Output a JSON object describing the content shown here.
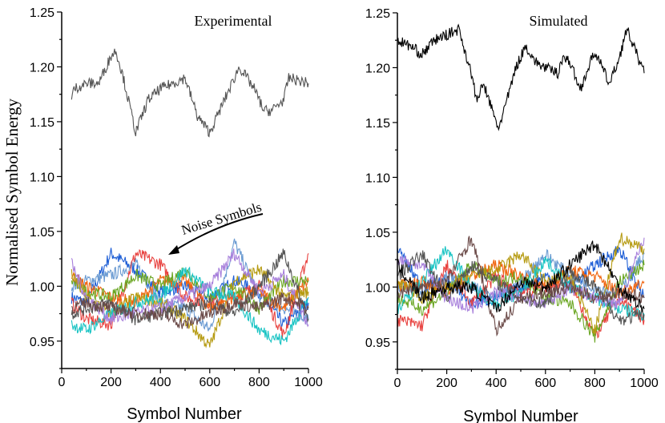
{
  "chart_data": [
    {
      "type": "line",
      "title": "Experimental",
      "xlabel": "Symbol Number",
      "ylabel": "Normalised Symbol Energy",
      "xlim": [
        0,
        1000
      ],
      "ylim": [
        0.925,
        1.25
      ],
      "xticks": [
        0,
        200,
        400,
        600,
        800,
        1000
      ],
      "yticks": [
        "0.95",
        "1.00",
        "1.05",
        "1.10",
        "1.15",
        "1.20",
        "1.25"
      ],
      "grid": false,
      "annotation": {
        "text": "Noise Symbols",
        "points_to": [
          430,
          1.027
        ]
      },
      "main_series": {
        "color": "#555555",
        "x": [
          40,
          50,
          100,
          150,
          200,
          220,
          250,
          280,
          300,
          350,
          400,
          450,
          500,
          550,
          600,
          650,
          700,
          720,
          780,
          820,
          850,
          900,
          920,
          1000
        ],
        "y": [
          1.17,
          1.18,
          1.185,
          1.185,
          1.21,
          1.215,
          1.19,
          1.16,
          1.14,
          1.17,
          1.18,
          1.185,
          1.19,
          1.155,
          1.14,
          1.165,
          1.19,
          1.2,
          1.18,
          1.16,
          1.16,
          1.17,
          1.19,
          1.185
        ]
      },
      "noise_x": [
        40,
        100,
        200,
        300,
        400,
        500,
        600,
        700,
        800,
        900,
        1000
      ],
      "noise_series": [
        {
          "color": "#1f5fd6",
          "y": [
            0.99,
            0.985,
            1.03,
            1.015,
            0.995,
            1.0,
            0.99,
            1.005,
            0.995,
            0.965,
            0.985
          ]
        },
        {
          "color": "#6b9bd2",
          "y": [
            1.0,
            1.005,
            1.01,
            1.02,
            0.985,
            0.98,
            0.96,
            1.04,
            0.99,
            0.98,
            0.97
          ]
        },
        {
          "color": "#e8423f",
          "y": [
            0.985,
            0.97,
            0.965,
            1.03,
            1.02,
            0.99,
            0.985,
            0.99,
            1.0,
            0.955,
            1.03
          ]
        },
        {
          "color": "#f0640f",
          "y": [
            1.01,
            1.0,
            0.99,
            0.985,
            1.005,
            1.005,
            0.98,
            0.99,
            0.995,
            0.98,
            1.005
          ]
        },
        {
          "color": "#6aa622",
          "y": [
            1.005,
            0.995,
            0.99,
            1.01,
            1.0,
            1.015,
            0.99,
            1.0,
            0.98,
            1.005,
            1.005
          ]
        },
        {
          "color": "#b59a10",
          "y": [
            1.01,
            0.99,
            0.975,
            0.99,
            0.985,
            0.97,
            0.945,
            1.005,
            1.015,
            0.99,
            0.995
          ]
        },
        {
          "color": "#17c3c3",
          "y": [
            0.965,
            0.96,
            0.975,
            0.985,
            0.99,
            1.015,
            0.995,
            0.99,
            0.96,
            0.95,
            0.99
          ]
        },
        {
          "color": "#a77fdb",
          "y": [
            1.02,
            0.99,
            0.97,
            0.975,
            0.98,
            0.99,
            1.0,
            1.03,
            0.995,
            1.01,
            0.965
          ]
        },
        {
          "color": "#555555",
          "y": [
            0.975,
            0.98,
            0.985,
            0.97,
            0.975,
            0.98,
            0.985,
            0.975,
            1.0,
            1.03,
            0.97
          ]
        },
        {
          "color": "#6b4a48",
          "y": [
            0.98,
            0.985,
            0.98,
            0.975,
            0.975,
            0.965,
            0.975,
            0.985,
            0.98,
            0.99,
            0.98
          ]
        }
      ]
    },
    {
      "type": "line",
      "title": "Simulated",
      "xlabel": "Symbol Number",
      "xlim": [
        0,
        1000
      ],
      "ylim": [
        0.925,
        1.25
      ],
      "xticks": [
        0,
        200,
        400,
        600,
        800,
        1000
      ],
      "yticks": [
        "0.95",
        "1.00",
        "1.05",
        "1.10",
        "1.15",
        "1.20",
        "1.25"
      ],
      "grid": false,
      "main_series": {
        "color": "#000000",
        "x": [
          0,
          50,
          100,
          150,
          200,
          250,
          280,
          300,
          320,
          350,
          400,
          410,
          450,
          480,
          520,
          560,
          600,
          650,
          670,
          700,
          740,
          800,
          860,
          900,
          930,
          1000
        ],
        "y": [
          1.225,
          1.22,
          1.212,
          1.225,
          1.23,
          1.235,
          1.21,
          1.195,
          1.17,
          1.185,
          1.15,
          1.145,
          1.175,
          1.2,
          1.22,
          1.205,
          1.2,
          1.195,
          1.21,
          1.205,
          1.18,
          1.215,
          1.185,
          1.21,
          1.235,
          1.195
        ]
      },
      "noise_x": [
        0,
        100,
        200,
        300,
        400,
        500,
        600,
        700,
        800,
        900,
        1000
      ],
      "noise_series": [
        {
          "color": "#1f5fd6",
          "y": [
            1.035,
            1.0,
            1.005,
            0.985,
            0.99,
            1.0,
            1.01,
            1.0,
            1.02,
            1.035,
            0.99
          ]
        },
        {
          "color": "#6b9bd2",
          "y": [
            1.0,
            0.995,
            1.01,
            1.0,
            0.99,
            1.005,
            1.03,
            1.01,
            1.0,
            0.995,
            1.03
          ]
        },
        {
          "color": "#e8423f",
          "y": [
            0.97,
            0.965,
            1.02,
            0.985,
            1.01,
            0.995,
            1.0,
            1.005,
            0.955,
            0.99,
            0.97
          ]
        },
        {
          "color": "#f0640f",
          "y": [
            1.0,
            1.005,
            0.995,
            1.01,
            1.02,
            1.01,
            1.0,
            1.015,
            1.01,
            0.995,
            1.005
          ]
        },
        {
          "color": "#6aa622",
          "y": [
            0.99,
            0.98,
            0.995,
            1.02,
            1.005,
            1.01,
            0.99,
            0.985,
            0.955,
            1.005,
            1.02
          ]
        },
        {
          "color": "#b59a10",
          "y": [
            1.005,
            0.99,
            1.0,
            1.01,
            1.015,
            1.03,
            1.005,
            1.01,
            0.96,
            1.045,
            1.035
          ]
        },
        {
          "color": "#17c3c3",
          "y": [
            0.98,
            1.005,
            1.035,
            1.0,
            0.985,
            0.995,
            1.025,
            1.0,
            0.99,
            0.98,
            0.975
          ]
        },
        {
          "color": "#a77fdb",
          "y": [
            1.025,
            1.02,
            0.99,
            0.98,
            0.995,
            0.99,
            0.985,
            1.0,
            0.99,
            0.985,
            1.045
          ]
        },
        {
          "color": "#555555",
          "y": [
            1.01,
            1.03,
            0.99,
            1.02,
            1.005,
            0.99,
            0.985,
            1.015,
            1.0,
            0.97,
            0.975
          ]
        },
        {
          "color": "#6b4a48",
          "y": [
            0.995,
            1.0,
            1.005,
            1.045,
            0.96,
            0.99,
            0.995,
            1.0,
            0.99,
            0.995,
            0.99
          ]
        },
        {
          "color": "#000000",
          "y": [
            1.02,
            0.99,
            1.0,
            1.0,
            0.98,
            1.005,
            1.0,
            1.02,
            1.04,
            1.0,
            0.98
          ]
        }
      ]
    }
  ]
}
